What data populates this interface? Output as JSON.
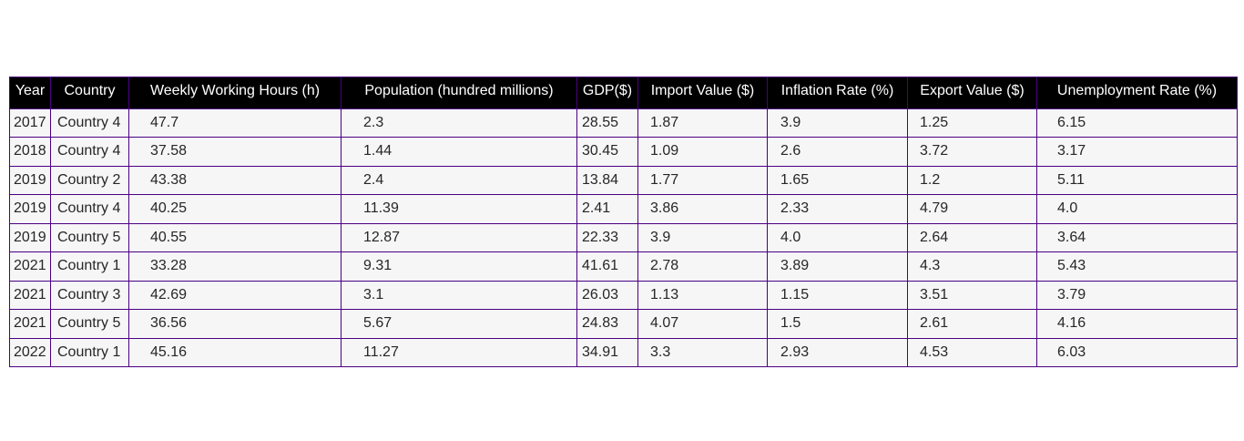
{
  "chart_data": {
    "type": "table",
    "columns": [
      "Year",
      "Country",
      "Weekly Working Hours (h)",
      "Population (hundred millions)",
      "GDP($)",
      "Import Value ($)",
      "Inflation Rate (%)",
      "Export Value ($)",
      "Unemployment Rate (%)"
    ],
    "rows": [
      [
        "2017",
        "Country 4",
        "47.7",
        "2.3",
        "28.55",
        "1.87",
        "3.9",
        "1.25",
        "6.15"
      ],
      [
        "2018",
        "Country 4",
        "37.58",
        "1.44",
        "30.45",
        "1.09",
        "2.6",
        "3.72",
        "3.17"
      ],
      [
        "2019",
        "Country 2",
        "43.38",
        "2.4",
        "13.84",
        "1.77",
        "1.65",
        "1.2",
        "5.11"
      ],
      [
        "2019",
        "Country 4",
        "40.25",
        "11.39",
        "2.41",
        "3.86",
        "2.33",
        "4.79",
        "4.0"
      ],
      [
        "2019",
        "Country 5",
        "40.55",
        "12.87",
        "22.33",
        "3.9",
        "4.0",
        "2.64",
        "3.64"
      ],
      [
        "2021",
        "Country 1",
        "33.28",
        "9.31",
        "41.61",
        "2.78",
        "3.89",
        "4.3",
        "5.43"
      ],
      [
        "2021",
        "Country 3",
        "42.69",
        "3.1",
        "26.03",
        "1.13",
        "1.15",
        "3.51",
        "3.79"
      ],
      [
        "2021",
        "Country 5",
        "36.56",
        "5.67",
        "24.83",
        "4.07",
        "1.5",
        "2.61",
        "4.16"
      ],
      [
        "2022",
        "Country 1",
        "45.16",
        "11.27",
        "34.91",
        "3.3",
        "2.93",
        "4.53",
        "6.03"
      ]
    ],
    "colors": {
      "header_background": "#000000",
      "header_text": "#ffffff",
      "cell_background": "#f6f6f7",
      "cell_text": "#262626",
      "border": "#4b0082"
    }
  }
}
